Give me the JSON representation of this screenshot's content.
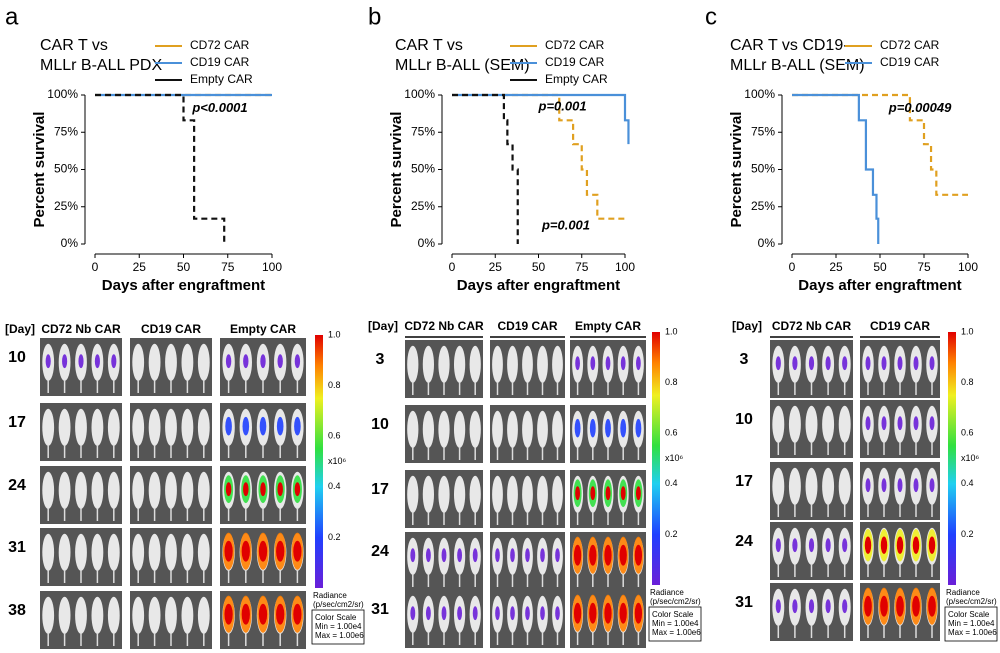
{
  "chart_data": [
    {
      "type": "line",
      "panel_label": "a",
      "title_lines": [
        "CAR T vs",
        "MLLr B-ALL PDX"
      ],
      "xlabel": "Days after engraftment",
      "ylabel": "Percent survival",
      "xlim": [
        0,
        100
      ],
      "xticks": [
        0,
        25,
        50,
        75,
        100
      ],
      "ylim": [
        0,
        100
      ],
      "yticks": [
        {
          "value": 0,
          "label": "0%"
        },
        {
          "value": 25,
          "label": "25%"
        },
        {
          "value": 50,
          "label": "50%"
        },
        {
          "value": 75,
          "label": "75%"
        },
        {
          "value": 100,
          "label": "100%"
        }
      ],
      "series": [
        {
          "name": "CD72 CAR",
          "color": "#e0a020",
          "dashed": true,
          "x": [
            0,
            100
          ],
          "values": [
            100,
            100
          ]
        },
        {
          "name": "CD19 CAR",
          "color": "#4a90d9",
          "dashed": false,
          "x": [
            0,
            100
          ],
          "values": [
            100,
            100
          ]
        },
        {
          "name": "Empty CAR",
          "color": "#111111",
          "dashed": true,
          "x": [
            0,
            50,
            56,
            73
          ],
          "values": [
            100,
            83,
            17,
            0
          ]
        }
      ],
      "annotations": [
        "p<0.0001"
      ]
    },
    {
      "type": "line",
      "panel_label": "b",
      "title_lines": [
        "CAR T vs",
        "MLLr B-ALL (SEM)"
      ],
      "xlabel": "Days after engraftment",
      "ylabel": "Percent survival",
      "xlim": [
        0,
        100
      ],
      "xticks": [
        0,
        25,
        50,
        75,
        100
      ],
      "ylim": [
        0,
        100
      ],
      "yticks": [
        {
          "value": 0,
          "label": "0%"
        },
        {
          "value": 25,
          "label": "25%"
        },
        {
          "value": 50,
          "label": "50%"
        },
        {
          "value": 75,
          "label": "75%"
        },
        {
          "value": 100,
          "label": "100%"
        }
      ],
      "series": [
        {
          "name": "CD72 CAR",
          "color": "#e0a020",
          "dashed": true,
          "x": [
            0,
            62,
            70,
            75,
            78,
            84,
            100
          ],
          "values": [
            100,
            83,
            67,
            50,
            33,
            17,
            17
          ]
        },
        {
          "name": "CD19 CAR",
          "color": "#4a90d9",
          "dashed": false,
          "x": [
            0,
            100,
            102
          ],
          "values": [
            100,
            83,
            67
          ]
        },
        {
          "name": "Empty CAR",
          "color": "#111111",
          "dashed": true,
          "x": [
            0,
            30,
            32,
            35,
            38
          ],
          "values": [
            100,
            83,
            67,
            50,
            0
          ]
        }
      ],
      "annotations": [
        "p=0.001",
        "p=0.001"
      ]
    },
    {
      "type": "line",
      "panel_label": "c",
      "title_lines": [
        "CAR T vs CD19-",
        "MLLr B-ALL  (SEM)"
      ],
      "xlabel": "Days after engraftment",
      "ylabel": "Percent survival",
      "xlim": [
        0,
        100
      ],
      "xticks": [
        0,
        25,
        50,
        75,
        100
      ],
      "ylim": [
        0,
        100
      ],
      "yticks": [
        {
          "value": 0,
          "label": "0%"
        },
        {
          "value": 25,
          "label": "25%"
        },
        {
          "value": 50,
          "label": "50%"
        },
        {
          "value": 75,
          "label": "75%"
        },
        {
          "value": 100,
          "label": "100%"
        }
      ],
      "series": [
        {
          "name": "CD72 CAR",
          "color": "#e0a020",
          "dashed": true,
          "x": [
            0,
            67,
            75,
            79,
            82,
            100
          ],
          "values": [
            100,
            83,
            67,
            50,
            33,
            33
          ]
        },
        {
          "name": "CD19 CAR",
          "color": "#4a90d9",
          "dashed": false,
          "x": [
            0,
            38,
            42,
            46,
            48,
            49
          ],
          "values": [
            100,
            83,
            50,
            33,
            17,
            0
          ]
        }
      ],
      "annotations": [
        "p=0.00049"
      ]
    }
  ],
  "imaging": [
    {
      "day_header": "[Day]",
      "columns": [
        "CD72 Nb CAR",
        "CD19 CAR",
        "Empty CAR"
      ],
      "days": [
        10,
        17,
        24,
        31,
        38
      ]
    },
    {
      "day_header": "[Day]",
      "columns": [
        "CD72 Nb CAR",
        "CD19 CAR",
        "Empty CAR"
      ],
      "days": [
        3,
        10,
        17,
        24,
        31
      ]
    },
    {
      "day_header": "[Day]",
      "columns": [
        "CD72 Nb CAR",
        "CD19 CAR"
      ],
      "days": [
        3,
        10,
        17,
        24,
        31
      ]
    }
  ],
  "color_scale": {
    "ticks": [
      "1.0",
      "0.8",
      "0.6",
      "0.4",
      "0.2"
    ],
    "multiplier": "x10⁶",
    "radiance_lines": [
      "Radiance",
      "(p/sec/cm2/sr)"
    ],
    "box_lines": [
      "Color Scale",
      "Min = 1.00e4",
      "Max = 1.00e6"
    ]
  }
}
